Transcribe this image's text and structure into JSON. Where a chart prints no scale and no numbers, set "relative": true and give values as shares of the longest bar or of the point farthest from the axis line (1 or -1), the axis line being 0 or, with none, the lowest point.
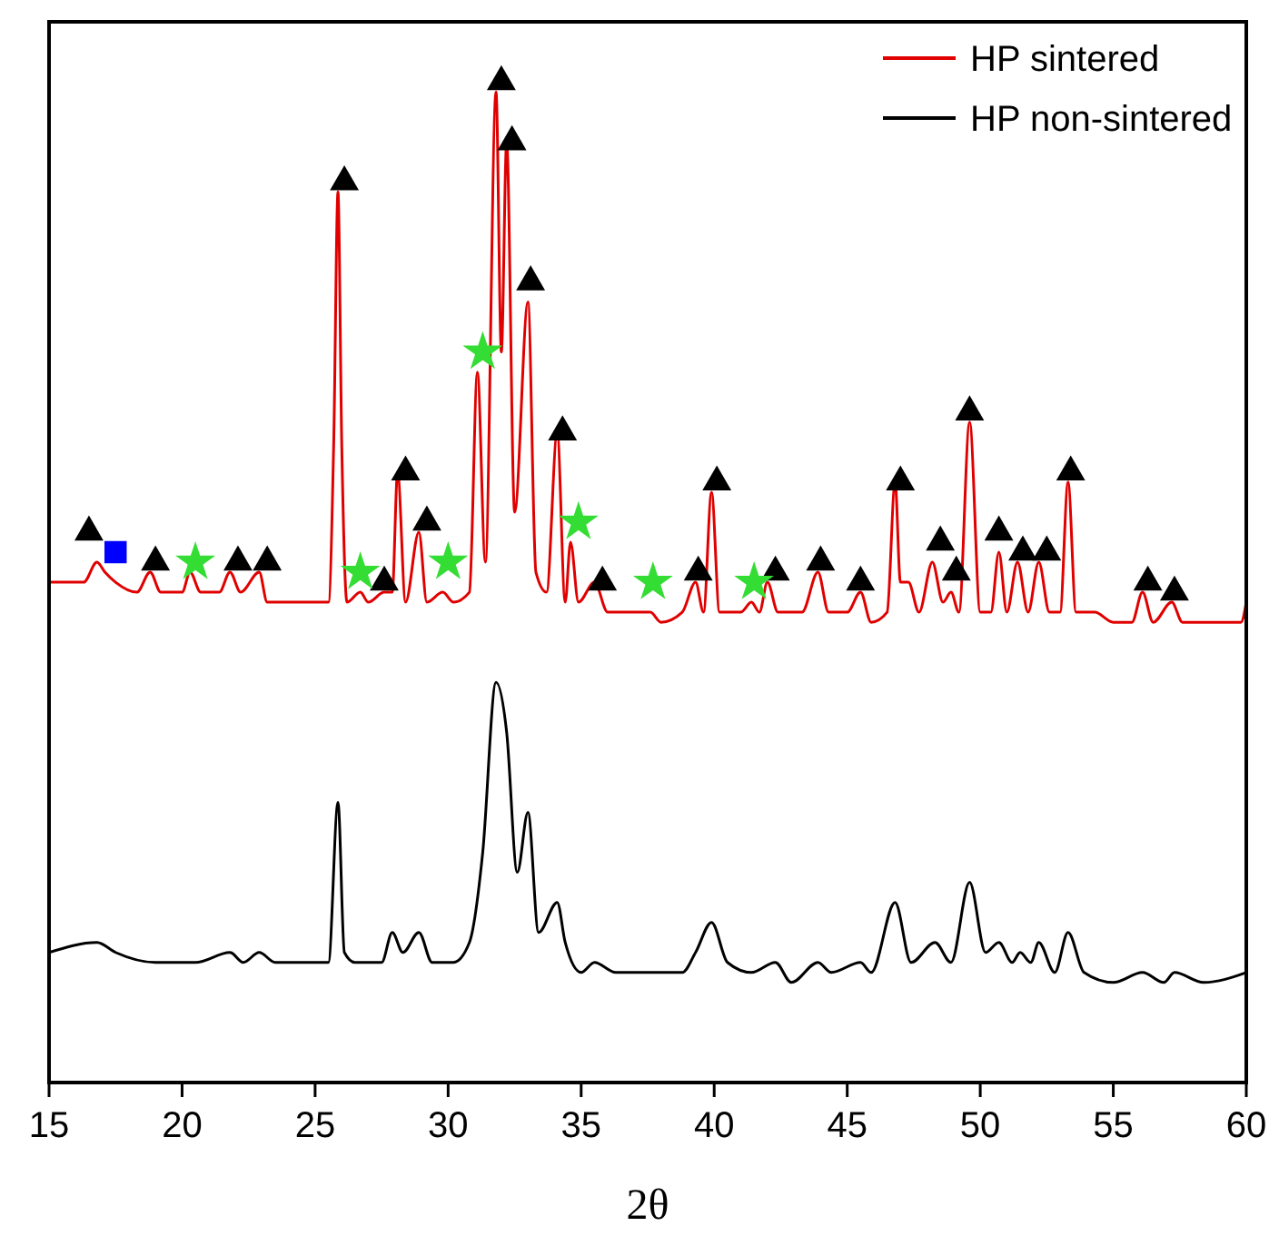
{
  "chart_data": {
    "type": "line",
    "relative": true,
    "xlabel": "2θ",
    "xlim": [
      15,
      60
    ],
    "xticks": [
      15,
      20,
      25,
      30,
      35,
      40,
      45,
      50,
      55,
      60
    ],
    "legend": "top right",
    "grid": false,
    "tick_labels": "x",
    "marker": "none",
    "line_style": "solid",
    "series": [
      {
        "name": "HP sintered",
        "color": "#e00000",
        "x": [
          15,
          15.5,
          16.3,
          16.8,
          17.1,
          17.5,
          18.3,
          18.8,
          19.2,
          20.0,
          20.3,
          20.7,
          21.4,
          21.8,
          22.2,
          22.9,
          23.2,
          24.5,
          25.5,
          25.7,
          25.86,
          26.0,
          26.2,
          26.7,
          27.0,
          27.6,
          27.9,
          28.1,
          28.4,
          28.9,
          29.2,
          29.8,
          30.2,
          30.8,
          31.1,
          31.4,
          31.8,
          32.0,
          32.2,
          32.5,
          33.0,
          33.3,
          33.7,
          34.1,
          34.4,
          34.6,
          34.9,
          35.5,
          36.0,
          37.2,
          37.6,
          38.0,
          38.8,
          39.3,
          39.6,
          39.9,
          40.2,
          41.0,
          41.4,
          41.7,
          42.0,
          42.4,
          43.3,
          43.9,
          44.3,
          45.0,
          45.5,
          45.9,
          46.5,
          46.8,
          47.0,
          47.3,
          47.7,
          48.2,
          48.6,
          48.9,
          49.2,
          49.6,
          50.0,
          50.4,
          50.7,
          51.0,
          51.4,
          51.8,
          52.2,
          52.6,
          53.0,
          53.3,
          53.6,
          54.3,
          55.0,
          55.7,
          56.1,
          56.5,
          57.2,
          57.6,
          58.5,
          59.3,
          59.8,
          60
        ],
        "values": [
          0.5,
          0.5,
          0.5,
          0.52,
          0.51,
          0.5,
          0.49,
          0.51,
          0.49,
          0.49,
          0.51,
          0.49,
          0.49,
          0.51,
          0.49,
          0.51,
          0.48,
          0.48,
          0.48,
          0.64,
          0.89,
          0.64,
          0.48,
          0.49,
          0.48,
          0.49,
          0.49,
          0.61,
          0.48,
          0.55,
          0.48,
          0.49,
          0.48,
          0.49,
          0.71,
          0.52,
          0.99,
          0.73,
          0.94,
          0.57,
          0.78,
          0.51,
          0.49,
          0.65,
          0.48,
          0.54,
          0.48,
          0.5,
          0.47,
          0.47,
          0.47,
          0.46,
          0.47,
          0.5,
          0.47,
          0.59,
          0.47,
          0.47,
          0.48,
          0.47,
          0.5,
          0.47,
          0.47,
          0.51,
          0.47,
          0.47,
          0.49,
          0.46,
          0.47,
          0.6,
          0.5,
          0.5,
          0.47,
          0.52,
          0.48,
          0.49,
          0.47,
          0.66,
          0.47,
          0.47,
          0.53,
          0.47,
          0.52,
          0.47,
          0.52,
          0.47,
          0.47,
          0.6,
          0.47,
          0.47,
          0.46,
          0.46,
          0.49,
          0.46,
          0.48,
          0.46,
          0.46,
          0.46,
          0.46,
          0.48
        ]
      },
      {
        "name": "HP non-sintered",
        "color": "#000000",
        "x": [
          15,
          16.8,
          17.5,
          19.0,
          20.5,
          21.8,
          22.3,
          22.9,
          23.5,
          24.5,
          25.5,
          25.86,
          26.1,
          26.5,
          27.5,
          27.9,
          28.3,
          28.9,
          29.4,
          30.2,
          30.8,
          31.3,
          31.8,
          32.2,
          32.6,
          33.0,
          33.4,
          34.1,
          34.4,
          35.0,
          35.5,
          36.3,
          37.5,
          38.8,
          39.3,
          39.9,
          40.5,
          41.4,
          42.3,
          42.9,
          43.9,
          44.4,
          45.5,
          45.9,
          46.8,
          47.4,
          48.3,
          48.9,
          49.6,
          50.2,
          50.7,
          51.2,
          51.5,
          51.9,
          52.2,
          52.8,
          53.3,
          53.9,
          55.0,
          56.1,
          56.9,
          57.3,
          58.4,
          60
        ],
        "values": [
          0.13,
          0.14,
          0.13,
          0.12,
          0.12,
          0.13,
          0.12,
          0.13,
          0.12,
          0.12,
          0.12,
          0.28,
          0.13,
          0.12,
          0.12,
          0.15,
          0.13,
          0.15,
          0.12,
          0.12,
          0.14,
          0.23,
          0.4,
          0.35,
          0.21,
          0.27,
          0.15,
          0.18,
          0.14,
          0.11,
          0.12,
          0.11,
          0.11,
          0.11,
          0.13,
          0.16,
          0.12,
          0.11,
          0.12,
          0.1,
          0.12,
          0.11,
          0.12,
          0.11,
          0.18,
          0.12,
          0.14,
          0.12,
          0.2,
          0.13,
          0.14,
          0.12,
          0.13,
          0.12,
          0.14,
          0.11,
          0.15,
          0.11,
          0.1,
          0.11,
          0.1,
          0.11,
          0.1,
          0.11
        ]
      },
      {
        "type": "scatter",
        "marker": "triangle",
        "color": "#000000",
        "x": [
          16.5,
          19.0,
          22.1,
          23.2,
          26.1,
          27.6,
          28.4,
          29.2,
          32.0,
          32.4,
          33.1,
          34.3,
          35.8,
          39.4,
          40.1,
          42.3,
          44.0,
          45.5,
          47.0,
          48.5,
          49.1,
          49.6,
          50.7,
          51.6,
          52.5,
          53.4,
          56.3,
          57.3
        ],
        "values": [
          0.55,
          0.52,
          0.52,
          0.52,
          0.9,
          0.5,
          0.61,
          0.56,
          1.0,
          0.94,
          0.8,
          0.65,
          0.5,
          0.51,
          0.6,
          0.51,
          0.52,
          0.5,
          0.6,
          0.54,
          0.51,
          0.67,
          0.55,
          0.53,
          0.53,
          0.61,
          0.5,
          0.49
        ]
      },
      {
        "type": "scatter",
        "marker": "star",
        "color": "#33dd33",
        "x": [
          20.5,
          26.7,
          30.0,
          31.3,
          34.9,
          37.7,
          41.5
        ],
        "values": [
          0.52,
          0.51,
          0.52,
          0.73,
          0.56,
          0.5,
          0.5
        ]
      },
      {
        "type": "scatter",
        "marker": "square",
        "color": "#0000ff",
        "x": [
          17.5
        ],
        "values": [
          0.53
        ]
      }
    ]
  }
}
